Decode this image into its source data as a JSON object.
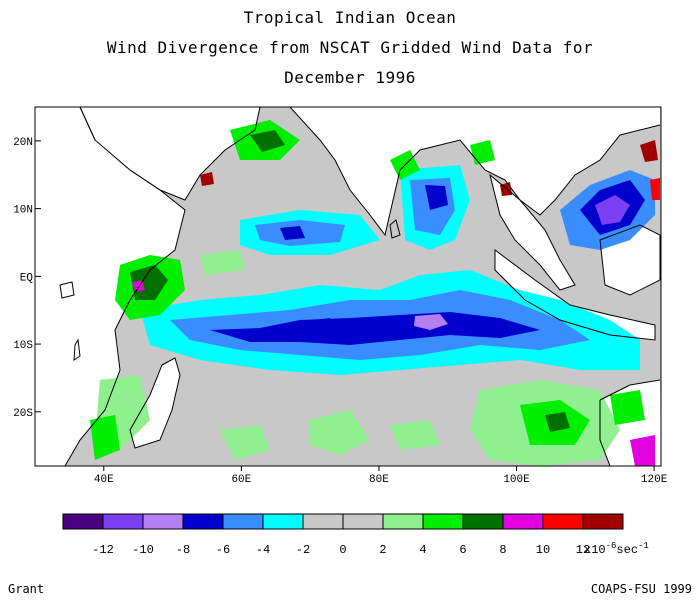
{
  "title": {
    "line1": "Tropical Indian Ocean",
    "line2": "Wind Divergence from NSCAT Gridded Wind Data for",
    "line3": "December 1996"
  },
  "map": {
    "lon_ticks": [
      "40E",
      "60E",
      "80E",
      "100E",
      "120E"
    ],
    "lat_ticks": [
      "20N",
      "10N",
      "EQ",
      "10S",
      "20S"
    ],
    "lon_range": [
      30,
      121
    ],
    "lat_range": [
      -28,
      25
    ]
  },
  "colorbar": {
    "colors": [
      "#4b0082",
      "#7b3ff2",
      "#b47ff0",
      "#0000cd",
      "#3a8dff",
      "#00ffff",
      "#c8c8c8",
      "#c8c8c8",
      "#90f090",
      "#00ee00",
      "#007000",
      "#e000e0",
      "#ff0000",
      "#a00000"
    ],
    "tick_labels": [
      "-12",
      "-10",
      "-8",
      "-6",
      "-4",
      "-2",
      "0",
      "2",
      "4",
      "6",
      "8",
      "10",
      "12"
    ],
    "units": "x10",
    "units_exp": "-6",
    "units_tail": "sec",
    "units_tail_exp": "-1"
  },
  "footer": {
    "left": "Grant",
    "right": "COAPS-FSU 1999"
  }
}
